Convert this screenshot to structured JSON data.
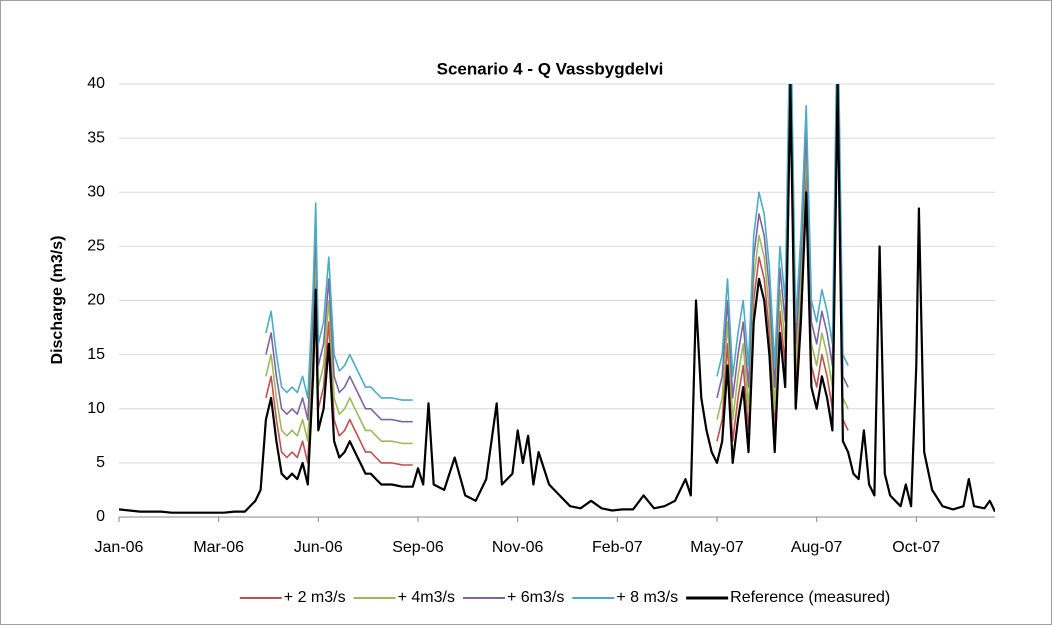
{
  "chart_data": {
    "type": "line",
    "title": "Scenario 4 - Q Vassbygdelvi",
    "y_label": "Discharge (m3/s)",
    "x": [
      0,
      8,
      16,
      24,
      32,
      40,
      48,
      56,
      64,
      72,
      80,
      88,
      96,
      104,
      108,
      112,
      116,
      120,
      124,
      128,
      132,
      136,
      140,
      144,
      148,
      150,
      152,
      156,
      160,
      164,
      168,
      172,
      176,
      180,
      184,
      188,
      192,
      196,
      200,
      208,
      216,
      224,
      228,
      232,
      236,
      240,
      248,
      256,
      264,
      272,
      280,
      288,
      292,
      300,
      304,
      308,
      312,
      316,
      320,
      328,
      336,
      344,
      352,
      360,
      368,
      376,
      384,
      392,
      400,
      408,
      416,
      424,
      432,
      436,
      440,
      444,
      448,
      452,
      456,
      460,
      464,
      468,
      472,
      476,
      480,
      484,
      488,
      492,
      496,
      500,
      504,
      508,
      512,
      516,
      520,
      524,
      528,
      532,
      536,
      540,
      544,
      548,
      552,
      556,
      560,
      564,
      568,
      572,
      576,
      580,
      584,
      588,
      592,
      596,
      600,
      604,
      608,
      610,
      614,
      620,
      628,
      636,
      644,
      648,
      652,
      660,
      664,
      668
    ],
    "xlim": [
      0,
      668
    ],
    "xticks": [
      {
        "value": 0,
        "label": "Jan-06"
      },
      {
        "value": 76,
        "label": "Mar-06"
      },
      {
        "value": 152,
        "label": "Jun-06"
      },
      {
        "value": 228,
        "label": "Sep-06"
      },
      {
        "value": 304,
        "label": "Nov-06"
      },
      {
        "value": 380,
        "label": "Feb-07"
      },
      {
        "value": 456,
        "label": "May-07"
      },
      {
        "value": 532,
        "label": "Aug-07"
      },
      {
        "value": 608,
        "label": "Oct-07"
      }
    ],
    "ylim": [
      0,
      40
    ],
    "yticks": [
      0,
      5,
      10,
      15,
      20,
      25,
      30,
      35,
      40
    ],
    "grid": true,
    "series": [
      {
        "name": "+ 2 m3/s",
        "color": "#c0504d",
        "values": [
          null,
          null,
          null,
          null,
          null,
          null,
          null,
          null,
          null,
          null,
          null,
          null,
          null,
          null,
          null,
          11,
          13,
          9,
          6,
          5.5,
          6,
          5.5,
          7,
          5,
          15,
          23,
          10,
          12,
          18,
          9,
          7.5,
          8,
          9,
          8,
          7,
          6,
          6,
          5.5,
          5,
          5,
          4.8,
          4.8,
          null,
          null,
          null,
          null,
          null,
          null,
          null,
          null,
          null,
          null,
          null,
          null,
          null,
          null,
          null,
          null,
          null,
          null,
          null,
          null,
          null,
          null,
          null,
          null,
          null,
          null,
          null,
          null,
          null,
          null,
          null,
          null,
          null,
          null,
          null,
          null,
          7,
          9,
          16,
          7,
          11,
          14,
          8,
          20,
          24,
          22,
          17,
          8,
          19,
          14,
          42,
          12,
          20,
          32,
          14,
          12,
          15,
          13,
          10,
          42,
          9,
          8,
          null,
          null,
          null,
          null,
          null,
          null,
          null,
          null,
          null,
          null,
          null,
          null,
          null,
          null,
          null,
          null,
          null,
          null,
          null,
          null,
          null,
          null,
          null,
          null
        ]
      },
      {
        "name": "+ 4m3/s",
        "color": "#9bbb59",
        "values": [
          null,
          null,
          null,
          null,
          null,
          null,
          null,
          null,
          null,
          null,
          null,
          null,
          null,
          null,
          null,
          13,
          15,
          11,
          8,
          7.5,
          8,
          7.5,
          9,
          7,
          17,
          25,
          12,
          14,
          20,
          11,
          9.5,
          10,
          11,
          10,
          9,
          8,
          8,
          7.5,
          7,
          7,
          6.8,
          6.8,
          null,
          null,
          null,
          null,
          null,
          null,
          null,
          null,
          null,
          null,
          null,
          null,
          null,
          null,
          null,
          null,
          null,
          null,
          null,
          null,
          null,
          null,
          null,
          null,
          null,
          null,
          null,
          null,
          null,
          null,
          null,
          null,
          null,
          null,
          null,
          null,
          9,
          11,
          18,
          9,
          13,
          16,
          10,
          22,
          26,
          24,
          19,
          10,
          21,
          16,
          44,
          14,
          22,
          34,
          16,
          14,
          17,
          15,
          12,
          44,
          11,
          10,
          null,
          null,
          null,
          null,
          null,
          null,
          null,
          null,
          null,
          null,
          null,
          null,
          null,
          null,
          null,
          null,
          null,
          null,
          null,
          null,
          null,
          null,
          null,
          null
        ]
      },
      {
        "name": "+ 6m3/s",
        "color": "#8064a2",
        "values": [
          null,
          null,
          null,
          null,
          null,
          null,
          null,
          null,
          null,
          null,
          null,
          null,
          null,
          null,
          null,
          15,
          17,
          13,
          10,
          9.5,
          10,
          9.5,
          11,
          9,
          19,
          27,
          14,
          16,
          22,
          13,
          11.5,
          12,
          13,
          12,
          11,
          10,
          10,
          9.5,
          9,
          9,
          8.8,
          8.8,
          null,
          null,
          null,
          null,
          null,
          null,
          null,
          null,
          null,
          null,
          null,
          null,
          null,
          null,
          null,
          null,
          null,
          null,
          null,
          null,
          null,
          null,
          null,
          null,
          null,
          null,
          null,
          null,
          null,
          null,
          null,
          null,
          null,
          null,
          null,
          null,
          11,
          13,
          20,
          11,
          15,
          18,
          12,
          24,
          28,
          26,
          21,
          12,
          23,
          18,
          46,
          16,
          24,
          36,
          18,
          16,
          19,
          17,
          14,
          46,
          13,
          12,
          null,
          null,
          null,
          null,
          null,
          null,
          null,
          null,
          null,
          null,
          null,
          null,
          null,
          null,
          null,
          null,
          null,
          null,
          null,
          null,
          null,
          null,
          null,
          null
        ]
      },
      {
        "name": "+ 8 m3/s",
        "color": "#4bacc6",
        "values": [
          null,
          null,
          null,
          null,
          null,
          null,
          null,
          null,
          null,
          null,
          null,
          null,
          null,
          null,
          null,
          17,
          19,
          15,
          12,
          11.5,
          12,
          11.5,
          13,
          11,
          21,
          29,
          16,
          18,
          24,
          15,
          13.5,
          14,
          15,
          14,
          13,
          12,
          12,
          11.5,
          11,
          11,
          10.8,
          10.8,
          null,
          null,
          null,
          null,
          null,
          null,
          null,
          null,
          null,
          null,
          null,
          null,
          null,
          null,
          null,
          null,
          null,
          null,
          null,
          null,
          null,
          null,
          null,
          null,
          null,
          null,
          null,
          null,
          null,
          null,
          null,
          null,
          null,
          null,
          null,
          null,
          13,
          15,
          22,
          13,
          17,
          20,
          14,
          26,
          30,
          28,
          23,
          14,
          25,
          20,
          48,
          18,
          26,
          38,
          20,
          18,
          21,
          19,
          16,
          48,
          15,
          14,
          null,
          null,
          null,
          null,
          null,
          null,
          null,
          null,
          null,
          null,
          null,
          null,
          null,
          null,
          null,
          null,
          null,
          null,
          null,
          null,
          null,
          null,
          null,
          null
        ]
      },
      {
        "name": "Reference (measured)",
        "color": "#000000",
        "values": [
          0.7,
          0.6,
          0.5,
          0.5,
          0.5,
          0.4,
          0.4,
          0.4,
          0.4,
          0.4,
          0.4,
          0.5,
          0.5,
          1.5,
          2.5,
          9,
          11,
          7,
          4,
          3.5,
          4,
          3.5,
          5,
          3,
          13,
          21,
          8,
          10,
          16,
          7,
          5.5,
          6,
          7,
          6,
          5,
          4,
          4,
          3.5,
          3,
          3,
          2.8,
          2.8,
          4.5,
          3,
          10.5,
          3,
          2.5,
          5.5,
          2,
          1.5,
          3.5,
          10.5,
          3,
          4,
          8,
          5,
          7.5,
          3,
          6,
          3,
          2,
          1,
          0.8,
          1.5,
          0.8,
          0.6,
          0.7,
          0.7,
          2,
          0.8,
          1,
          1.5,
          3.5,
          2,
          20,
          11,
          8,
          6,
          5,
          7,
          14,
          5,
          9,
          12,
          6,
          18,
          22,
          20,
          15,
          6,
          17,
          12,
          40,
          10,
          18,
          30,
          12,
          10,
          13,
          11,
          8,
          40,
          7,
          6,
          4,
          3.5,
          8,
          3,
          2,
          25,
          4,
          2,
          1.5,
          1,
          3,
          1,
          14,
          28.5,
          6,
          2.5,
          1,
          0.7,
          1,
          3.5,
          1,
          0.8,
          1.5,
          0.5
        ]
      }
    ]
  }
}
